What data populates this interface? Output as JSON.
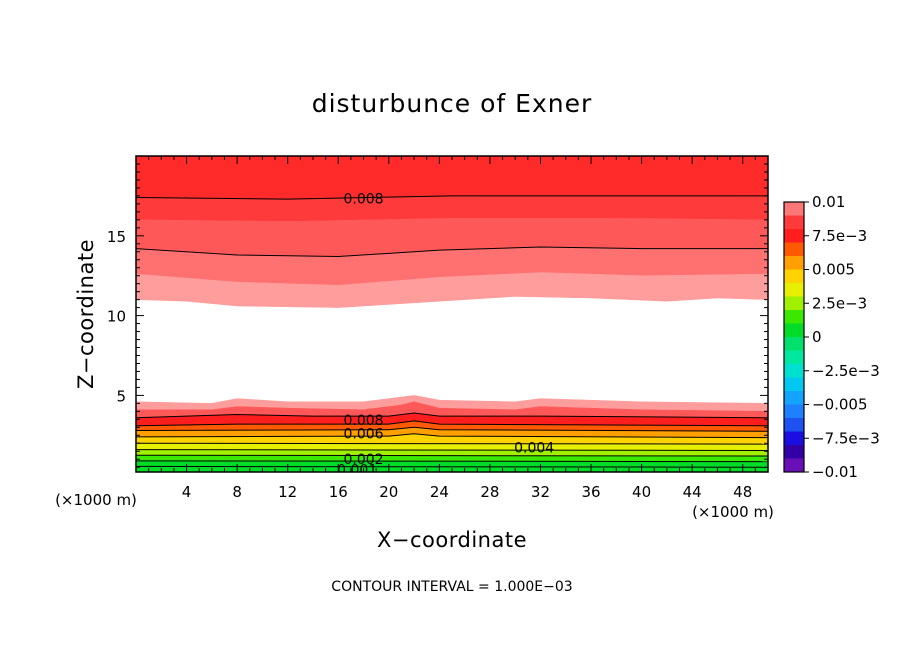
{
  "chart_data": {
    "type": "contour",
    "title": "disturbunce of Exner",
    "xlabel": "X−coordinate",
    "ylabel": "Z−coordinate",
    "x_unit": "(×1000 m)",
    "y_unit": "(×1000 m)",
    "footer": "CONTOUR INTERVAL = 1.000E−03",
    "xlim": [
      0,
      50
    ],
    "ylim": [
      0.2,
      20
    ],
    "x_ticks": [
      {
        "value": 4,
        "label": "4"
      },
      {
        "value": 8,
        "label": "8"
      },
      {
        "value": 12,
        "label": "12"
      },
      {
        "value": 16,
        "label": "16"
      },
      {
        "value": 20,
        "label": "20"
      },
      {
        "value": 24,
        "label": "24"
      },
      {
        "value": 28,
        "label": "28"
      },
      {
        "value": 32,
        "label": "32"
      },
      {
        "value": 36,
        "label": "36"
      },
      {
        "value": 40,
        "label": "40"
      },
      {
        "value": 44,
        "label": "44"
      },
      {
        "value": 48,
        "label": "48"
      }
    ],
    "y_ticks": [
      {
        "value": 5,
        "label": "5"
      },
      {
        "value": 10,
        "label": "10"
      },
      {
        "value": 15,
        "label": "15"
      }
    ],
    "colorbar": {
      "min": -0.01,
      "max": 0.01,
      "levels": [
        {
          "lo": -0.01,
          "hi": -0.009,
          "color": "#6a0fb8"
        },
        {
          "lo": -0.009,
          "hi": -0.008,
          "color": "#3300a8"
        },
        {
          "lo": -0.008,
          "hi": -0.007,
          "color": "#1a0fe0"
        },
        {
          "lo": -0.007,
          "hi": -0.006,
          "color": "#1f50f0"
        },
        {
          "lo": -0.006,
          "hi": -0.005,
          "color": "#1e7fff"
        },
        {
          "lo": -0.005,
          "hi": -0.004,
          "color": "#14a3ff"
        },
        {
          "lo": -0.004,
          "hi": -0.003,
          "color": "#00c8f0"
        },
        {
          "lo": -0.003,
          "hi": -0.002,
          "color": "#00e0d0"
        },
        {
          "lo": -0.002,
          "hi": -0.001,
          "color": "#00e8a0"
        },
        {
          "lo": -0.001,
          "hi": 0.0,
          "color": "#00e06c"
        },
        {
          "lo": 0.0,
          "hi": 0.001,
          "color": "#00dc28"
        },
        {
          "lo": 0.001,
          "hi": 0.002,
          "color": "#3ce800"
        },
        {
          "lo": 0.002,
          "hi": 0.003,
          "color": "#a0f000"
        },
        {
          "lo": 0.003,
          "hi": 0.004,
          "color": "#e6f000"
        },
        {
          "lo": 0.004,
          "hi": 0.005,
          "color": "#ffd200"
        },
        {
          "lo": 0.005,
          "hi": 0.006,
          "color": "#ffa000"
        },
        {
          "lo": 0.006,
          "hi": 0.007,
          "color": "#ff5a00"
        },
        {
          "lo": 0.007,
          "hi": 0.008,
          "color": "#ff1e1e"
        },
        {
          "lo": 0.008,
          "hi": 0.009,
          "color": "#ff3a3a"
        },
        {
          "lo": 0.009,
          "hi": 0.01,
          "color": "#ff7878"
        }
      ],
      "tick_labels": [
        {
          "value": 0.01,
          "label": "0.01"
        },
        {
          "value": 0.0075,
          "label": "7.5e−3"
        },
        {
          "value": 0.005,
          "label": "0.005"
        },
        {
          "value": 0.0025,
          "label": "2.5e−3"
        },
        {
          "value": 0.0,
          "label": "0"
        },
        {
          "value": -0.0025,
          "label": "−2.5e−3"
        },
        {
          "value": -0.005,
          "label": "−0.005"
        },
        {
          "value": -0.0075,
          "label": "−7.5e−3"
        },
        {
          "value": -0.01,
          "label": "−0.01"
        }
      ]
    },
    "contour_bands": [
      {
        "range": "upper",
        "lo": 0.008,
        "hi": 0.009,
        "color": "#ff2a2a",
        "z": [
          [
            0,
            17.4
          ],
          [
            12,
            17.3
          ],
          [
            25,
            17.5
          ],
          [
            38,
            17.5
          ],
          [
            50,
            17.5
          ]
        ],
        "z2": [
          [
            0,
            20
          ],
          [
            50,
            20
          ]
        ]
      },
      {
        "range": "upper",
        "lo": 0.009,
        "hi": 0.01,
        "color": "#ff3a3a",
        "z": [
          [
            0,
            16.0
          ],
          [
            12,
            15.9
          ],
          [
            25,
            16.1
          ],
          [
            38,
            16.1
          ],
          [
            50,
            16.0
          ]
        ],
        "z2": [
          [
            0,
            17.4
          ],
          [
            12,
            17.3
          ],
          [
            25,
            17.5
          ],
          [
            38,
            17.5
          ],
          [
            50,
            17.5
          ]
        ]
      },
      {
        "range": "upper",
        "lo": 0.008,
        "hi": 0.009,
        "color": "#ff5858",
        "z": [
          [
            0,
            14.2
          ],
          [
            8,
            13.8
          ],
          [
            16,
            13.7
          ],
          [
            24,
            14.1
          ],
          [
            32,
            14.3
          ],
          [
            40,
            14.2
          ],
          [
            50,
            14.2
          ]
        ],
        "z2": [
          [
            0,
            16.0
          ],
          [
            12,
            15.9
          ],
          [
            25,
            16.1
          ],
          [
            38,
            16.1
          ],
          [
            50,
            16.0
          ]
        ]
      },
      {
        "range": "upper",
        "lo": 0.007,
        "hi": 0.008,
        "color": "#ff7070",
        "z": [
          [
            0,
            12.6
          ],
          [
            8,
            12.1
          ],
          [
            16,
            11.9
          ],
          [
            24,
            12.4
          ],
          [
            32,
            12.7
          ],
          [
            40,
            12.5
          ],
          [
            50,
            12.6
          ]
        ],
        "z2": [
          [
            0,
            14.2
          ],
          [
            8,
            13.8
          ],
          [
            16,
            13.7
          ],
          [
            24,
            14.1
          ],
          [
            32,
            14.3
          ],
          [
            40,
            14.2
          ],
          [
            50,
            14.2
          ]
        ]
      },
      {
        "range": "upper",
        "lo": 0.006,
        "hi": 0.007,
        "color": "#ff9c9c",
        "z": [
          [
            0,
            11.0
          ],
          [
            4,
            10.9
          ],
          [
            8,
            10.6
          ],
          [
            16,
            10.5
          ],
          [
            22,
            10.8
          ],
          [
            30,
            11.2
          ],
          [
            36,
            11.1
          ],
          [
            42,
            10.9
          ],
          [
            46,
            11.1
          ],
          [
            50,
            11.0
          ]
        ],
        "z2": [
          [
            0,
            12.6
          ],
          [
            8,
            12.1
          ],
          [
            16,
            11.9
          ],
          [
            24,
            12.4
          ],
          [
            32,
            12.7
          ],
          [
            40,
            12.5
          ],
          [
            50,
            12.6
          ]
        ]
      },
      {
        "range": "lower",
        "lo": 0.006,
        "hi": 0.007,
        "color": "#ff9c9c",
        "z": [
          [
            0,
            4.1
          ],
          [
            6,
            4.1
          ],
          [
            8,
            4.3
          ],
          [
            12,
            4.2
          ],
          [
            18,
            4.1
          ],
          [
            21,
            4.4
          ],
          [
            22,
            4.6
          ],
          [
            24,
            4.2
          ],
          [
            30,
            4.1
          ],
          [
            32,
            4.3
          ],
          [
            40,
            4.1
          ],
          [
            50,
            4.0
          ]
        ],
        "z2": [
          [
            0,
            4.6
          ],
          [
            6,
            4.5
          ],
          [
            8,
            4.8
          ],
          [
            12,
            4.6
          ],
          [
            18,
            4.6
          ],
          [
            21,
            4.9
          ],
          [
            22,
            5.0
          ],
          [
            24,
            4.7
          ],
          [
            30,
            4.6
          ],
          [
            32,
            4.8
          ],
          [
            40,
            4.6
          ],
          [
            50,
            4.5
          ]
        ]
      },
      {
        "range": "lower",
        "lo": 0.007,
        "hi": 0.008,
        "color": "#ff5858",
        "z": [
          [
            0,
            3.6
          ],
          [
            8,
            3.8
          ],
          [
            14,
            3.7
          ],
          [
            20,
            3.7
          ],
          [
            22,
            3.9
          ],
          [
            24,
            3.7
          ],
          [
            32,
            3.7
          ],
          [
            50,
            3.6
          ]
        ],
        "z2": [
          [
            0,
            4.1
          ],
          [
            6,
            4.1
          ],
          [
            8,
            4.3
          ],
          [
            12,
            4.2
          ],
          [
            18,
            4.1
          ],
          [
            21,
            4.4
          ],
          [
            22,
            4.6
          ],
          [
            24,
            4.2
          ],
          [
            30,
            4.1
          ],
          [
            32,
            4.3
          ],
          [
            40,
            4.1
          ],
          [
            50,
            4.0
          ]
        ]
      },
      {
        "range": "lower",
        "lo": 0.008,
        "hi": 0.009,
        "color": "#ff1e1e",
        "z": [
          [
            0,
            3.1
          ],
          [
            8,
            3.2
          ],
          [
            20,
            3.2
          ],
          [
            22,
            3.4
          ],
          [
            24,
            3.2
          ],
          [
            50,
            3.1
          ]
        ],
        "z2": [
          [
            0,
            3.6
          ],
          [
            8,
            3.8
          ],
          [
            14,
            3.7
          ],
          [
            20,
            3.7
          ],
          [
            22,
            3.9
          ],
          [
            24,
            3.7
          ],
          [
            32,
            3.7
          ],
          [
            50,
            3.6
          ]
        ]
      },
      {
        "range": "lower",
        "lo": 0.006,
        "hi": 0.007,
        "color": "#ff5a00",
        "z": [
          [
            0,
            2.8
          ],
          [
            20,
            2.85
          ],
          [
            22,
            3.0
          ],
          [
            24,
            2.85
          ],
          [
            50,
            2.75
          ]
        ],
        "z2": [
          [
            0,
            3.1
          ],
          [
            8,
            3.2
          ],
          [
            20,
            3.2
          ],
          [
            22,
            3.4
          ],
          [
            24,
            3.2
          ],
          [
            50,
            3.1
          ]
        ]
      },
      {
        "range": "lower",
        "lo": 0.005,
        "hi": 0.006,
        "color": "#ffa000",
        "z": [
          [
            0,
            2.4
          ],
          [
            20,
            2.45
          ],
          [
            22,
            2.6
          ],
          [
            24,
            2.45
          ],
          [
            50,
            2.35
          ]
        ],
        "z2": [
          [
            0,
            2.8
          ],
          [
            20,
            2.85
          ],
          [
            22,
            3.0
          ],
          [
            24,
            2.85
          ],
          [
            50,
            2.75
          ]
        ]
      },
      {
        "range": "lower",
        "lo": 0.004,
        "hi": 0.005,
        "color": "#ffd200",
        "z": [
          [
            0,
            2.0
          ],
          [
            50,
            1.95
          ]
        ],
        "z2": [
          [
            0,
            2.4
          ],
          [
            20,
            2.45
          ],
          [
            22,
            2.6
          ],
          [
            24,
            2.45
          ],
          [
            50,
            2.35
          ]
        ]
      },
      {
        "range": "lower",
        "lo": 0.003,
        "hi": 0.004,
        "color": "#e6f000",
        "z": [
          [
            0,
            1.6
          ],
          [
            50,
            1.55
          ]
        ],
        "z2": [
          [
            0,
            2.0
          ],
          [
            50,
            1.95
          ]
        ]
      },
      {
        "range": "lower",
        "lo": 0.002,
        "hi": 0.003,
        "color": "#a0f000",
        "z": [
          [
            0,
            1.25
          ],
          [
            50,
            1.2
          ]
        ],
        "z2": [
          [
            0,
            1.6
          ],
          [
            50,
            1.55
          ]
        ]
      },
      {
        "range": "lower",
        "lo": 0.001,
        "hi": 0.002,
        "color": "#3ce800",
        "z": [
          [
            0,
            0.9
          ],
          [
            50,
            0.85
          ]
        ],
        "z2": [
          [
            0,
            1.25
          ],
          [
            50,
            1.2
          ]
        ]
      },
      {
        "range": "lower",
        "lo": 0.0,
        "hi": 0.001,
        "color": "#00dc28",
        "z": [
          [
            0,
            0.2
          ],
          [
            50,
            0.2
          ]
        ],
        "z2": [
          [
            0,
            0.9
          ],
          [
            50,
            0.85
          ]
        ]
      }
    ],
    "contour_lines": [
      [
        [
          0,
          17.4
        ],
        [
          12,
          17.3
        ],
        [
          25,
          17.5
        ],
        [
          38,
          17.5
        ],
        [
          50,
          17.5
        ]
      ],
      [
        [
          0,
          14.2
        ],
        [
          8,
          13.8
        ],
        [
          16,
          13.7
        ],
        [
          24,
          14.1
        ],
        [
          32,
          14.3
        ],
        [
          40,
          14.2
        ],
        [
          50,
          14.2
        ]
      ],
      [
        [
          0,
          3.6
        ],
        [
          8,
          3.8
        ],
        [
          14,
          3.7
        ],
        [
          20,
          3.7
        ],
        [
          22,
          3.9
        ],
        [
          24,
          3.7
        ],
        [
          32,
          3.7
        ],
        [
          50,
          3.6
        ]
      ],
      [
        [
          0,
          3.1
        ],
        [
          8,
          3.2
        ],
        [
          20,
          3.2
        ],
        [
          22,
          3.4
        ],
        [
          24,
          3.2
        ],
        [
          50,
          3.1
        ]
      ],
      [
        [
          0,
          2.8
        ],
        [
          20,
          2.85
        ],
        [
          22,
          3.0
        ],
        [
          24,
          2.85
        ],
        [
          50,
          2.75
        ]
      ],
      [
        [
          0,
          2.4
        ],
        [
          20,
          2.45
        ],
        [
          22,
          2.6
        ],
        [
          24,
          2.45
        ],
        [
          50,
          2.35
        ]
      ],
      [
        [
          0,
          2.0
        ],
        [
          50,
          1.95
        ]
      ],
      [
        [
          0,
          1.6
        ],
        [
          50,
          1.55
        ]
      ],
      [
        [
          0,
          1.25
        ],
        [
          50,
          1.2
        ]
      ],
      [
        [
          0,
          0.9
        ],
        [
          50,
          0.85
        ]
      ],
      [
        [
          0,
          0.55
        ],
        [
          50,
          0.5
        ]
      ]
    ],
    "contour_labels": [
      {
        "x": 18,
        "z": 17.35,
        "label": "0.008"
      },
      {
        "x": 18,
        "z": 3.45,
        "label": "0.008"
      },
      {
        "x": 18,
        "z": 2.6,
        "label": "0.006"
      },
      {
        "x": 31.5,
        "z": 1.75,
        "label": "0.004"
      },
      {
        "x": 18,
        "z": 1.0,
        "label": "0.002"
      },
      {
        "x": 17.5,
        "z": 0.35,
        "label": "0.001"
      }
    ]
  }
}
